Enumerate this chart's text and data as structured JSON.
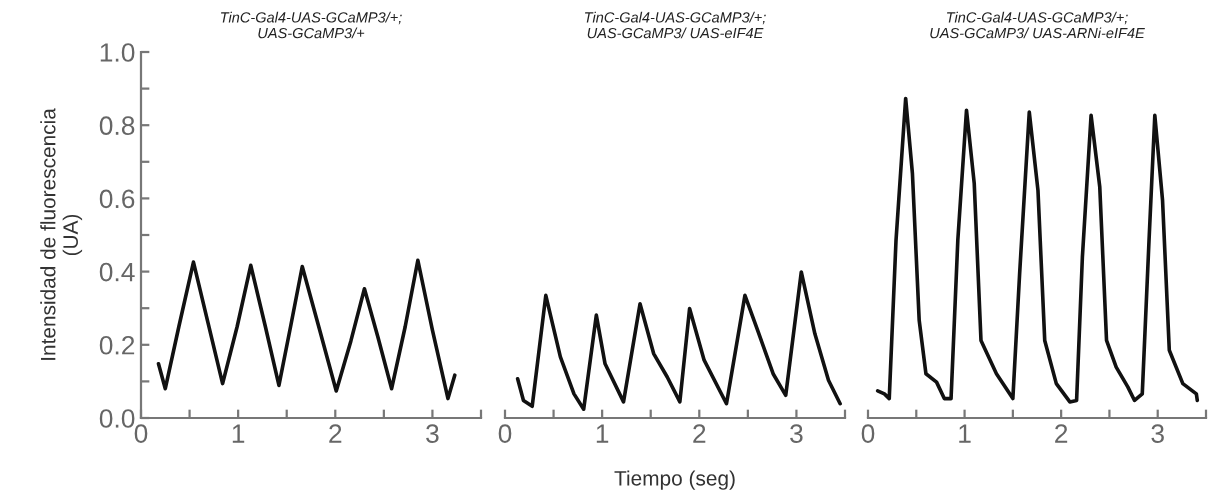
{
  "chart_data": [
    {
      "type": "line",
      "title": "TinC-Gal4-UAS-GCaMP3/+;\nUAS-GCaMP3/+",
      "ylabel": "Intensidad de fluorescencia\n(UA)",
      "xlim": [
        0,
        3.5
      ],
      "ylim": [
        0,
        1.0
      ],
      "xticks": [
        0,
        {
          "value": 0.5,
          "label": null
        },
        1,
        {
          "value": 1.5,
          "label": null
        },
        2,
        {
          "value": 2.5,
          "label": null
        },
        3,
        {
          "value": 3.5,
          "label": null
        }
      ],
      "yticks": [
        {
          "value": 0,
          "label": "0.0"
        },
        {
          "value": 0.1,
          "label": null
        },
        {
          "value": 0.2,
          "label": "0.2"
        },
        {
          "value": 0.3,
          "label": null
        },
        {
          "value": 0.4,
          "label": "0.4"
        },
        {
          "value": 0.5,
          "label": null
        },
        {
          "value": 0.6,
          "label": "0.6"
        },
        {
          "value": 0.7,
          "label": null
        },
        {
          "value": 0.8,
          "label": "0.8"
        },
        {
          "value": 0.9,
          "label": null
        },
        {
          "value": 1.0,
          "label": "1.0"
        }
      ],
      "grid": false,
      "legend": false,
      "series": [
        {
          "color": "#111111",
          "x": [
            0.18,
            0.25,
            0.39,
            0.54,
            0.69,
            0.84,
            0.99,
            1.13,
            1.28,
            1.42,
            1.54,
            1.66,
            1.84,
            2.01,
            2.16,
            2.3,
            2.44,
            2.58,
            2.72,
            2.85,
            3.0,
            3.16,
            3.23
          ],
          "values": [
            0.148,
            0.08,
            0.25,
            0.426,
            0.26,
            0.094,
            0.25,
            0.417,
            0.25,
            0.089,
            0.25,
            0.414,
            0.24,
            0.074,
            0.21,
            0.353,
            0.22,
            0.08,
            0.25,
            0.431,
            0.24,
            0.053,
            0.117
          ]
        }
      ]
    },
    {
      "type": "line",
      "title": "TinC-Gal4-UAS-GCaMP3/+;\nUAS-GCaMP3/ UAS-eIF4E",
      "xlabel": "Tiempo (seg)",
      "xlim": [
        0,
        3.5
      ],
      "ylim": [
        0,
        1.0
      ],
      "tick_labels": "x",
      "xticks": [
        0,
        {
          "value": 0.5,
          "label": null
        },
        1,
        {
          "value": 1.5,
          "label": null
        },
        2,
        {
          "value": 2.5,
          "label": null
        },
        3,
        {
          "value": 3.5,
          "label": null
        }
      ],
      "grid": false,
      "legend": false,
      "series": [
        {
          "color": "#111111",
          "x": [
            0.13,
            0.19,
            0.28,
            0.42,
            0.57,
            0.71,
            0.81,
            0.94,
            1.03,
            1.22,
            1.39,
            1.53,
            1.67,
            1.8,
            1.9,
            2.05,
            2.28,
            2.47,
            2.6,
            2.76,
            2.89,
            3.05,
            3.19,
            3.33,
            3.45
          ],
          "values": [
            0.107,
            0.048,
            0.032,
            0.335,
            0.167,
            0.066,
            0.024,
            0.281,
            0.148,
            0.044,
            0.312,
            0.176,
            0.112,
            0.044,
            0.299,
            0.158,
            0.039,
            0.335,
            0.24,
            0.121,
            0.062,
            0.399,
            0.23,
            0.103,
            0.039
          ]
        }
      ]
    },
    {
      "type": "line",
      "title": "TinC-Gal4-UAS-GCaMP3/+;\nUAS-GCaMP3/ UAS-ARNi-eIF4E",
      "xlim": [
        0,
        3.5
      ],
      "ylim": [
        0,
        1.0
      ],
      "tick_labels": "x",
      "xticks": [
        0,
        {
          "value": 0.5,
          "label": null
        },
        1,
        {
          "value": 1.5,
          "label": null
        },
        2,
        {
          "value": 2.5,
          "label": null
        },
        3,
        {
          "value": 3.5,
          "label": null
        }
      ],
      "grid": false,
      "legend": false,
      "series": [
        {
          "color": "#111111",
          "x": [
            0.1,
            0.17,
            0.22,
            0.29,
            0.39,
            0.46,
            0.53,
            0.6,
            0.71,
            0.79,
            0.86,
            0.93,
            1.02,
            1.1,
            1.17,
            1.33,
            1.5,
            1.57,
            1.67,
            1.76,
            1.83,
            1.95,
            2.09,
            2.16,
            2.22,
            2.31,
            2.4,
            2.47,
            2.57,
            2.69,
            2.76,
            2.84,
            2.91,
            2.97,
            3.05,
            3.12,
            3.26,
            3.4,
            3.41
          ],
          "values": [
            0.074,
            0.066,
            0.053,
            0.485,
            0.873,
            0.668,
            0.267,
            0.121,
            0.098,
            0.053,
            0.053,
            0.485,
            0.841,
            0.641,
            0.212,
            0.121,
            0.053,
            0.394,
            0.836,
            0.622,
            0.212,
            0.094,
            0.044,
            0.048,
            0.44,
            0.827,
            0.631,
            0.212,
            0.139,
            0.085,
            0.048,
            0.066,
            0.485,
            0.827,
            0.595,
            0.185,
            0.094,
            0.066,
            0.048
          ]
        }
      ]
    }
  ]
}
